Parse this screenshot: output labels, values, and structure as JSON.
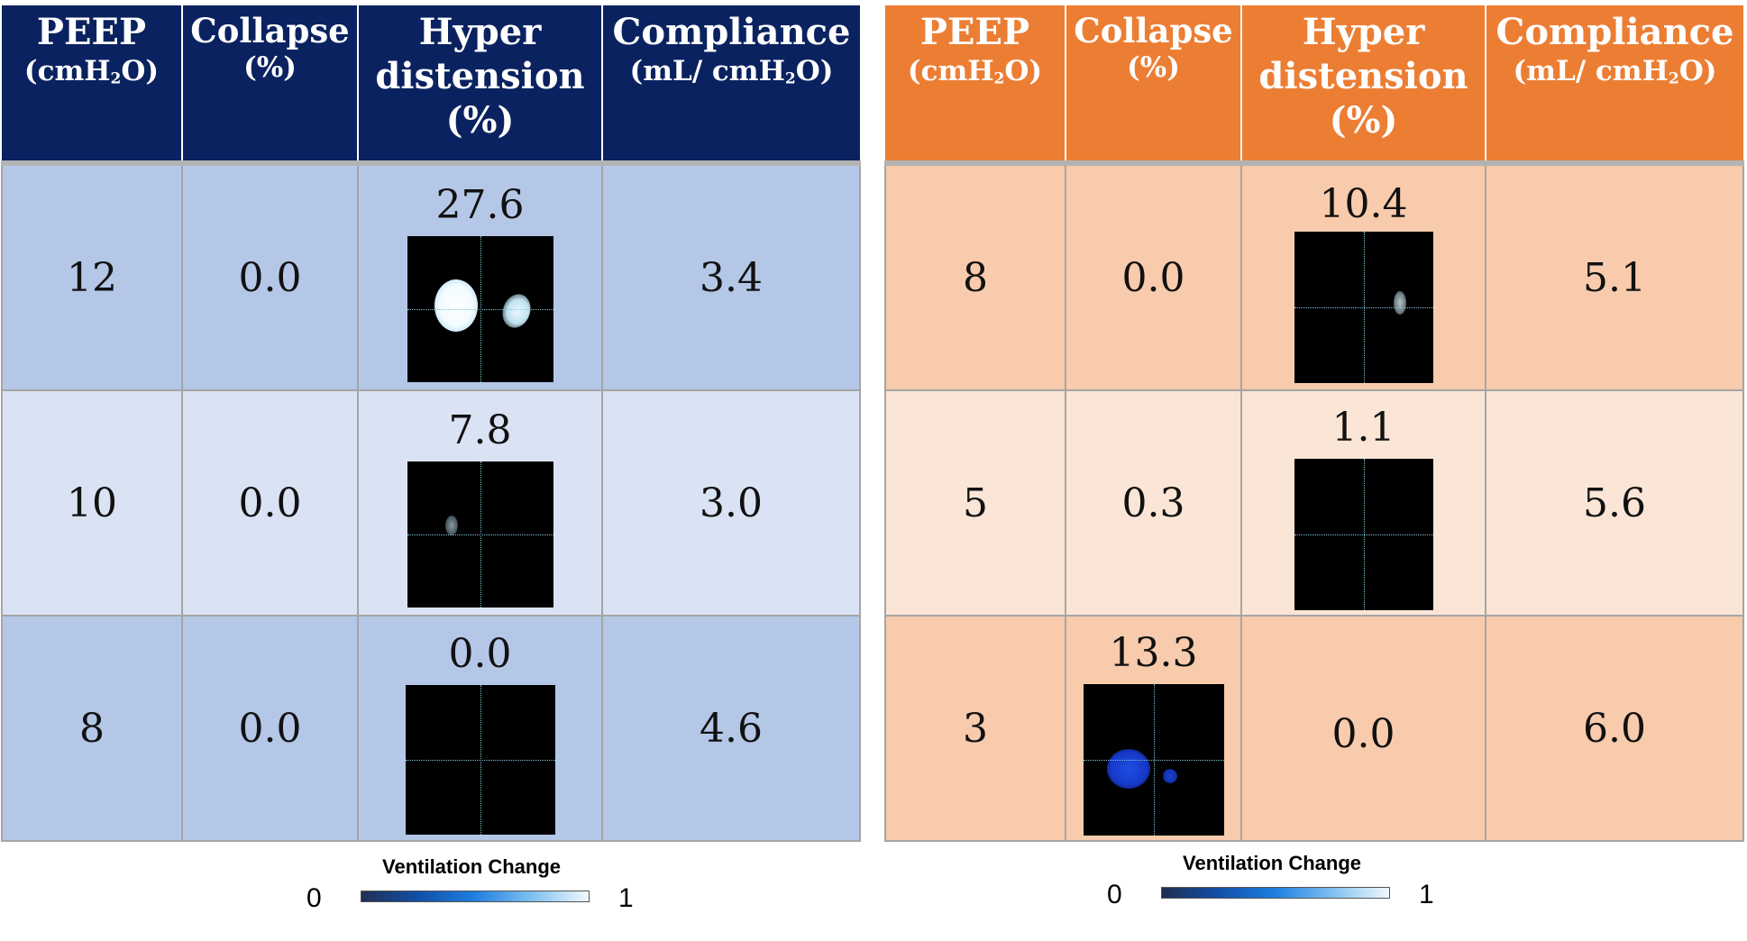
{
  "headers": {
    "peep": "PEEP",
    "peep_unit_a": "(cmH",
    "peep_unit_sub": "2",
    "peep_unit_b": "O)",
    "collapse": "Collapse",
    "collapse_unit": "(%)",
    "hyper_1": "Hyper",
    "hyper_2": "distension",
    "hyper_unit": "(%)",
    "compliance": "Compliance",
    "compliance_unit_a": "(mL/ cmH",
    "compliance_unit_sub": "2",
    "compliance_unit_b": "O)"
  },
  "left_table": {
    "header_color": "#0b2260",
    "rows": [
      {
        "peep": "12",
        "collapse": "0.0",
        "hyperdistension": "27.6",
        "compliance": "3.4"
      },
      {
        "peep": "10",
        "collapse": "0.0",
        "hyperdistension": "7.8",
        "compliance": "3.0"
      },
      {
        "peep": "8",
        "collapse": "0.0",
        "hyperdistension": "0.0",
        "compliance": "4.6"
      }
    ]
  },
  "right_table": {
    "header_color": "#ec7e34",
    "rows": [
      {
        "peep": "8",
        "collapse": "0.0",
        "hyperdistension": "10.4",
        "compliance": "5.1"
      },
      {
        "peep": "5",
        "collapse": "0.3",
        "hyperdistension": "1.1",
        "compliance": "5.6"
      },
      {
        "peep": "3",
        "collapse": "13.3",
        "hyperdistension": "0.0",
        "compliance": "6.0"
      }
    ]
  },
  "legend": {
    "title": "Ventilation Change",
    "min_label": "0",
    "max_label": "1"
  }
}
